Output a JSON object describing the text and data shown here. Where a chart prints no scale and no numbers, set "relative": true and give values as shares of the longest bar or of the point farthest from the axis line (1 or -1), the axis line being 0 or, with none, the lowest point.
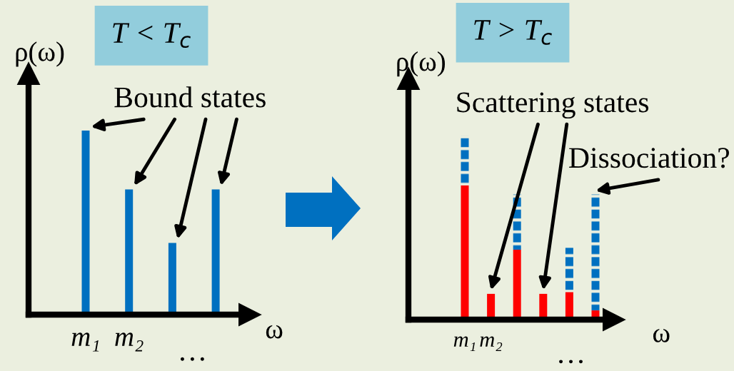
{
  "chart_data": [
    {
      "type": "bar",
      "title": "T < T$_{c}$",
      "ylabel": "ρ(ω)",
      "xlabel": "ω",
      "relative": true,
      "categories": [
        "m₁",
        "m₂",
        null,
        null
      ],
      "series": [
        {
          "color": "#0070c0",
          "values": [
            1,
            0.68,
            0.39,
            0.68
          ]
        }
      ],
      "annotations": [
        "Bound states",
        "…"
      ]
    },
    {
      "type": "bar",
      "title": "T > T$_{c}$",
      "ylabel": "ρ(ω)",
      "xlabel": "ω",
      "relative": true,
      "stacked": true,
      "categories": [
        "m₁",
        "m₂",
        null,
        null,
        null,
        null
      ],
      "series": [
        {
          "color": "#ff0000",
          "values": [
            0.73,
            0.14,
            0.38,
            0.14,
            0.15,
            0.05
          ]
        },
        {
          "color": "#0070c0",
          "line_style": "dashed",
          "values": [
            0.27,
            null,
            0.3,
            null,
            0.24,
            0.63
          ]
        }
      ],
      "annotations": [
        "Scattering states",
        "Dissociation?",
        "…"
      ]
    }
  ]
}
